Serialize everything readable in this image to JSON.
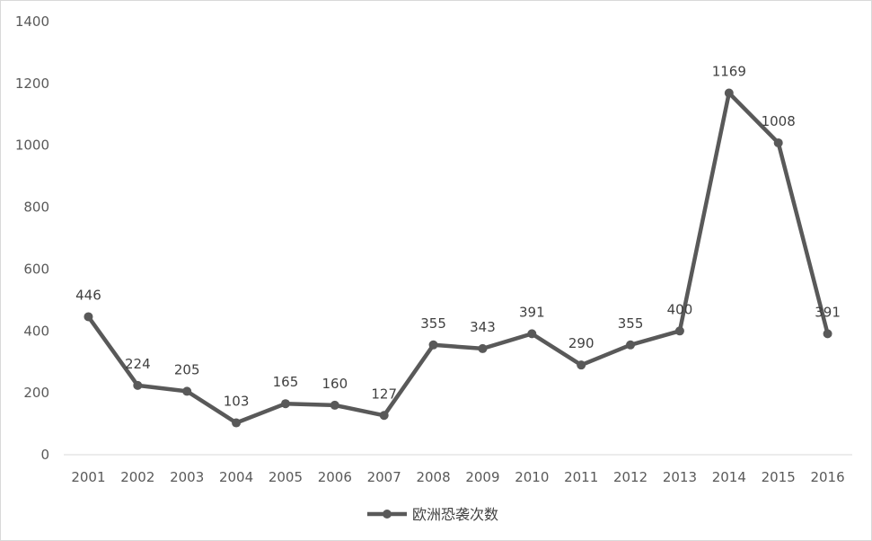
{
  "chart_data": {
    "type": "line",
    "categories": [
      "2001",
      "2002",
      "2003",
      "2004",
      "2005",
      "2006",
      "2007",
      "2008",
      "2009",
      "2010",
      "2011",
      "2012",
      "2013",
      "2014",
      "2015",
      "2016"
    ],
    "series": [
      {
        "name": "欧洲恐袭次数",
        "values": [
          446,
          224,
          205,
          103,
          165,
          160,
          127,
          355,
          343,
          391,
          290,
          355,
          400,
          1169,
          1008,
          391
        ]
      }
    ],
    "ylim": [
      0,
      1400
    ],
    "yticks": [
      0,
      200,
      400,
      600,
      800,
      1000,
      1200,
      1400
    ],
    "grid": false,
    "data_labels": true,
    "legend_position": "bottom",
    "colors": {
      "line": "#595959",
      "text": "#595959",
      "axis": "#d9d9d9"
    }
  }
}
